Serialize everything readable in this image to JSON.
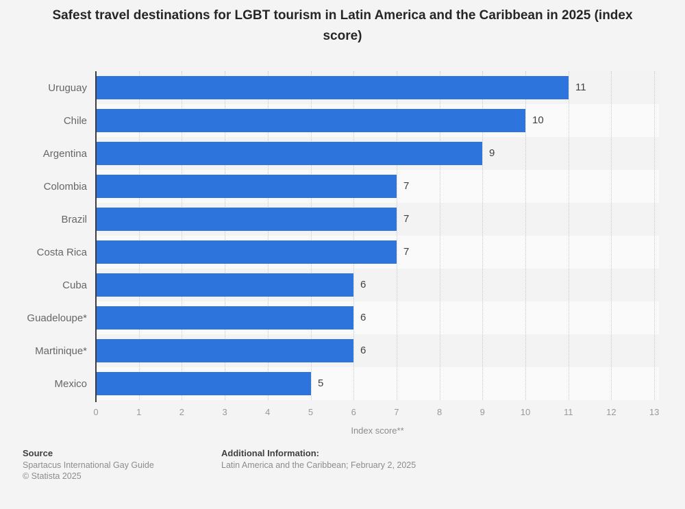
{
  "title": "Safest travel destinations for LGBT tourism in Latin America and the Caribbean in 2025 (index score)",
  "chart_data": {
    "type": "bar",
    "orientation": "horizontal",
    "categories": [
      "Uruguay",
      "Chile",
      "Argentina",
      "Colombia",
      "Brazil",
      "Costa Rica",
      "Cuba",
      "Guadeloupe*",
      "Martinique*",
      "Mexico"
    ],
    "values": [
      11,
      10,
      9,
      7,
      7,
      7,
      6,
      6,
      6,
      5
    ],
    "title": "Safest travel destinations for LGBT tourism in Latin America and the Caribbean in 2025 (index score)",
    "xlabel": "Index score**",
    "ylabel": "",
    "xlim": [
      0,
      13
    ],
    "xticks": [
      0,
      1,
      2,
      3,
      4,
      5,
      6,
      7,
      8,
      9,
      10,
      11,
      12,
      13
    ],
    "grid": "vertical-dotted",
    "legend": "none",
    "bar_color": "#2d74dc",
    "row_stripe_colors": [
      "#f3f3f3",
      "#fafafa"
    ],
    "value_label_color": "#404040",
    "category_label_color": "#666666"
  },
  "footer": {
    "source_label": "Source",
    "source_value": "Spartacus International Gay Guide",
    "copyright": "© Statista 2025",
    "additional_label": "Additional Information:",
    "additional_value": "Latin America and the Caribbean; February 2, 2025"
  }
}
